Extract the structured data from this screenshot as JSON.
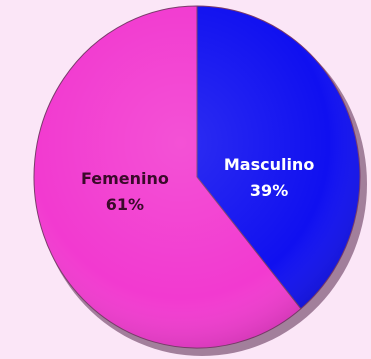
{
  "chart_data": {
    "type": "pie",
    "title": "",
    "slices": [
      {
        "label": "Masculino",
        "value": 39,
        "display": "39%",
        "color": "#1010f0",
        "label_color": "#ffffff"
      },
      {
        "label": "Femenino",
        "value": 61,
        "display": "61%",
        "color": "#f23ad0",
        "label_color": "#3a0a2a"
      }
    ],
    "start_angle_deg": 0,
    "direction": "clockwise",
    "legend": "none",
    "background_color": "#fbe6f7"
  }
}
